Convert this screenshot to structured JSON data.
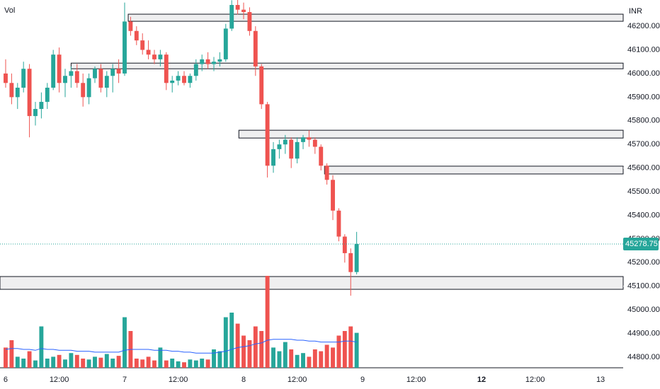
{
  "chart_data": {
    "type": "candlestick",
    "volume_label": "Vol",
    "currency": "INR",
    "up_color": "#26a69a",
    "down_color": "#ef5350",
    "ma_color": "#2962ff",
    "ylim": [
      44755,
      46311
    ],
    "yticks": [
      {
        "value": 44800,
        "label": "44800.00"
      },
      {
        "value": 44900,
        "label": "44900.00"
      },
      {
        "value": 45000,
        "label": "45000.00"
      },
      {
        "value": 45100,
        "label": "45100.00"
      },
      {
        "value": 45200,
        "label": "45200.00"
      },
      {
        "value": 45300,
        "label": "45300.00"
      },
      {
        "value": 45400,
        "label": "45400.00"
      },
      {
        "value": 45500,
        "label": "45500.00"
      },
      {
        "value": 45600,
        "label": "45600.00"
      },
      {
        "value": 45700,
        "label": "45700.00"
      },
      {
        "value": 45800,
        "label": "45800.00"
      },
      {
        "value": 45900,
        "label": "45900.00"
      },
      {
        "value": 46000,
        "label": "46000.00"
      },
      {
        "value": 46100,
        "label": "46100.00"
      },
      {
        "value": 46200,
        "label": "46200.00"
      }
    ],
    "xlim": [
      -0.95,
      103.8
    ],
    "xticks": [
      {
        "value": 0,
        "label": "6"
      },
      {
        "value": 9,
        "label": "12:00"
      },
      {
        "value": 20,
        "label": "7"
      },
      {
        "value": 29,
        "label": "12:00"
      },
      {
        "value": 40,
        "label": "8"
      },
      {
        "value": 49,
        "label": "12:00"
      },
      {
        "value": 60,
        "label": "9"
      },
      {
        "value": 69,
        "label": "12:00"
      },
      {
        "value": 80,
        "label": "12"
      },
      {
        "value": 89,
        "label": "12:00"
      },
      {
        "value": 100,
        "label": "13"
      }
    ],
    "bold_xtick": 80,
    "open": [
      46000,
      45960,
      45900,
      45940,
      46020,
      45820,
      45850,
      45880,
      45940,
      46080,
      45960,
      45990,
      46010,
      45960,
      45900,
      45980,
      46020,
      45940,
      45990,
      46020,
      46000,
      46220,
      46180,
      46140,
      46100,
      46080,
      46060,
      46080,
      45960,
      45970,
      45990,
      45960,
      45990,
      46040,
      46060,
      46040,
      46050,
      46060,
      46190,
      46290,
      46270,
      46260,
      46180,
      46030,
      45870,
      45610,
      45680,
      45700,
      45720,
      45640,
      45710,
      45730,
      45720,
      45690,
      45610,
      45550,
      45420,
      45310,
      45240,
      45160
    ],
    "high": [
      46060,
      46000,
      45960,
      46050,
      46040,
      45880,
      45920,
      45960,
      46100,
      46110,
      46020,
      46030,
      46040,
      46000,
      46000,
      46030,
      46040,
      46010,
      46040,
      46060,
      46300,
      46240,
      46200,
      46170,
      46140,
      46100,
      46100,
      46090,
      45990,
      46010,
      46010,
      46000,
      46060,
      46080,
      46090,
      46070,
      46090,
      46210,
      46310,
      46320,
      46300,
      46280,
      46200,
      46040,
      45880,
      45710,
      45720,
      45740,
      45730,
      45730,
      45740,
      45760,
      45730,
      45700,
      45620,
      45570,
      45430,
      45320,
      45260,
      45330
    ],
    "low": [
      45940,
      45870,
      45850,
      45920,
      45730,
      45780,
      45810,
      45850,
      45930,
      45920,
      45900,
      45940,
      45940,
      45860,
      45870,
      45960,
      45920,
      45900,
      45920,
      45960,
      45990,
      46160,
      46120,
      46080,
      46060,
      46040,
      46030,
      45930,
      45920,
      45950,
      45950,
      45940,
      45970,
      46010,
      46020,
      46010,
      46030,
      46050,
      46180,
      46250,
      46230,
      46160,
      45990,
      45850,
      45560,
      45580,
      45640,
      45660,
      45600,
      45620,
      45680,
      45690,
      45660,
      45590,
      45530,
      45380,
      45290,
      45200,
      45060,
      45150
    ],
    "close": [
      45960,
      45900,
      45940,
      46020,
      45820,
      45850,
      45880,
      45940,
      46080,
      45960,
      45990,
      46010,
      45960,
      45900,
      45980,
      46020,
      45940,
      45990,
      46020,
      46000,
      46220,
      46180,
      46140,
      46100,
      46080,
      46060,
      46080,
      45960,
      45970,
      45990,
      45960,
      45990,
      46040,
      46060,
      46040,
      46050,
      46060,
      46190,
      46290,
      46270,
      46260,
      46180,
      46030,
      45870,
      45610,
      45680,
      45700,
      45720,
      45640,
      45710,
      45730,
      45720,
      45690,
      45610,
      45550,
      45420,
      45310,
      45240,
      45160,
      45278.75
    ],
    "volume": [
      22,
      30,
      12,
      10,
      18,
      8,
      45,
      10,
      12,
      14,
      9,
      16,
      14,
      10,
      9,
      12,
      11,
      15,
      10,
      13,
      55,
      40,
      10,
      9,
      12,
      8,
      22,
      8,
      10,
      7,
      6,
      9,
      8,
      10,
      9,
      20,
      18,
      55,
      60,
      48,
      35,
      30,
      45,
      40,
      100,
      22,
      18,
      28,
      20,
      14,
      16,
      12,
      20,
      18,
      25,
      22,
      35,
      40,
      45,
      38
    ],
    "volume_ylim": [
      0,
      100
    ],
    "volume_ma": [
      20,
      21,
      21,
      20,
      20,
      19,
      21,
      20,
      20,
      19,
      19,
      19,
      18,
      18,
      18,
      17,
      17,
      17,
      17,
      17,
      19,
      20,
      20,
      20,
      20,
      19,
      19,
      19,
      18,
      18,
      17,
      17,
      16,
      16,
      16,
      16,
      17,
      18,
      20,
      22,
      23,
      24,
      26,
      27,
      30,
      31,
      31,
      31,
      31,
      30,
      30,
      29,
      29,
      28,
      28,
      28,
      28,
      29,
      29,
      28
    ],
    "zones": [
      {
        "from": 20.6,
        "top": 46251,
        "bottom": 46221
      },
      {
        "from": 11,
        "top": 46044,
        "bottom": 46020
      },
      {
        "from": 39.2,
        "top": 45760,
        "bottom": 45727
      },
      {
        "from": 53.6,
        "top": 45608,
        "bottom": 45575
      },
      {
        "from": -0.95,
        "top": 45141,
        "bottom": 45087
      }
    ]
  }
}
